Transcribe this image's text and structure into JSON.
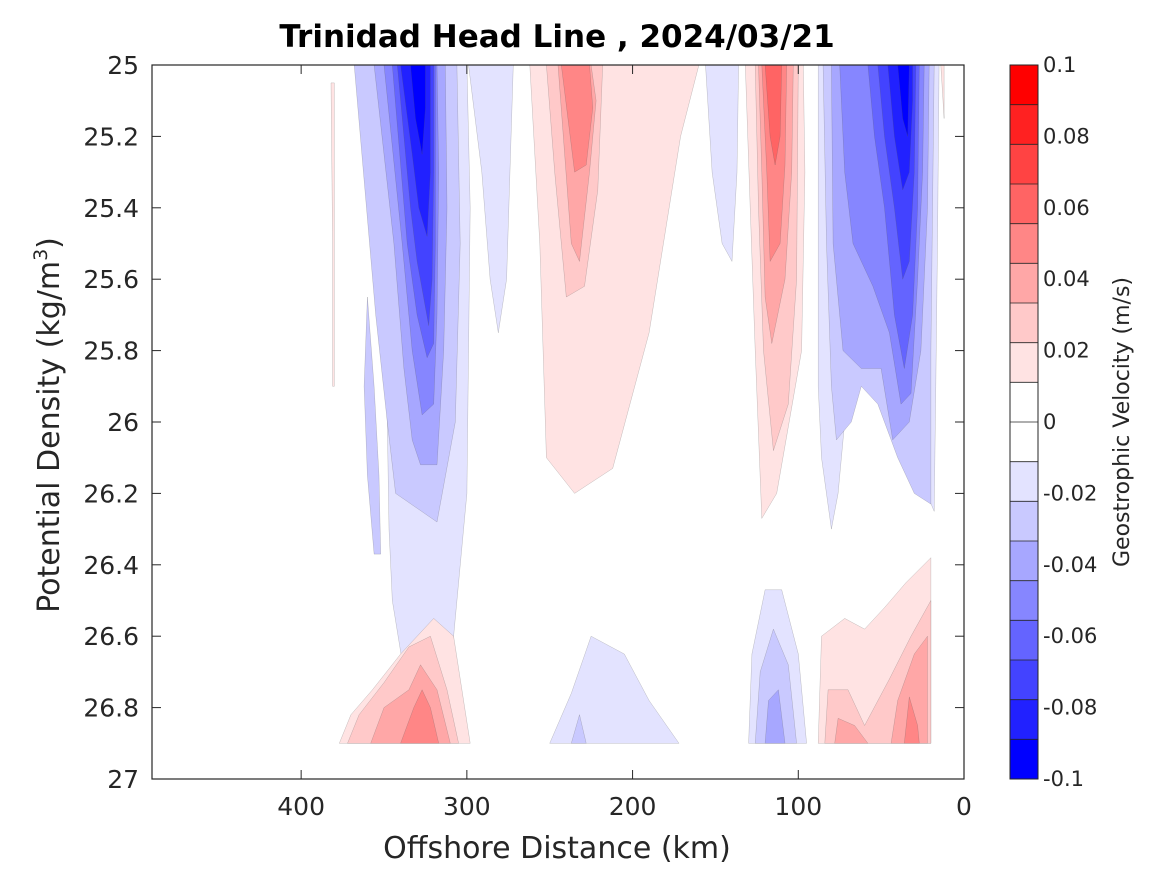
{
  "chart_data": {
    "type": "contour",
    "title": "Trinidad Head Line , 2024/03/21",
    "xlabel": "Offshore Distance (km)",
    "ylabel_main": "Potential Density (kg/m",
    "ylabel_sup": "3",
    "ylabel_close": ")",
    "xlim": [
      490,
      0
    ],
    "ylim": [
      25,
      27
    ],
    "x_reversed": true,
    "y_reversed": true,
    "xticks": [
      400,
      300,
      200,
      100,
      0
    ],
    "xtick_labels": [
      "400",
      "300",
      "200",
      "100",
      "0"
    ],
    "yticks": [
      25,
      25.2,
      25.4,
      25.6,
      25.8,
      26,
      26.2,
      26.4,
      26.6,
      26.8,
      27
    ],
    "ytick_labels": [
      "25",
      "25.2",
      "25.4",
      "25.6",
      "25.8",
      "26",
      "26.2",
      "26.4",
      "26.6",
      "26.8",
      "27"
    ],
    "grid": false,
    "colorbar": {
      "label": "Geostrophic Velocity (m/s)",
      "limits": [
        -0.1,
        0.1
      ],
      "ticks": [
        0.1,
        0.08,
        0.06,
        0.04,
        0.02,
        0,
        -0.02,
        -0.04,
        -0.06,
        -0.08,
        -0.1
      ],
      "tick_labels": [
        "0.1",
        "0.08",
        "0.06",
        "0.04",
        "0.02",
        "0",
        "-0.02",
        "-0.04",
        "-0.06",
        "-0.08",
        "-0.1"
      ],
      "level_colors": [
        "#ff0000",
        "#ff2121",
        "#ff4343",
        "#ff6464",
        "#ff8686",
        "#ffa7a7",
        "#ffc9c9",
        "#ffe3e3",
        "#ffffff",
        "#ffffff",
        "#e3e3ff",
        "#c9c9ff",
        "#a7a7ff",
        "#8686ff",
        "#6464ff",
        "#4343ff",
        "#2121ff",
        "#0000ff"
      ]
    },
    "features": [
      {
        "name": "blue core near 330 km",
        "x_km": [
          382,
          300
        ],
        "density": [
          25.0,
          26.7
        ],
        "peak_velocity": -0.1,
        "peak_x_km": 328,
        "peak_density": 25.4
      },
      {
        "name": "weak blue band near 285 km",
        "x_km": [
          300,
          270
        ],
        "density": [
          25.0,
          25.8
        ],
        "peak_velocity": -0.015
      },
      {
        "name": "red band near 230 km",
        "x_km": [
          262,
          160
        ],
        "density": [
          25.0,
          26.15
        ],
        "peak_velocity": 0.04,
        "peak_x_km": 235,
        "peak_density": 25.2
      },
      {
        "name": "weak blue band near 150 km",
        "x_km": [
          156,
          136
        ],
        "density": [
          25.0,
          25.55
        ],
        "peak_velocity": -0.015
      },
      {
        "name": "red core near 115 km",
        "x_km": [
          132,
          96
        ],
        "density": [
          25.0,
          26.27
        ],
        "peak_velocity": 0.06,
        "peak_x_km": 115,
        "peak_density": 25.2
      },
      {
        "name": "blue core near 30 km",
        "x_km": [
          88,
          17
        ],
        "density": [
          25.0,
          26.3
        ],
        "peak_velocity": -0.09,
        "peak_x_km": 30,
        "peak_density": 25.25
      },
      {
        "name": "deep red near 330 km",
        "x_km": [
          372,
          300
        ],
        "density": [
          26.5,
          26.9
        ],
        "peak_velocity": 0.045
      },
      {
        "name": "deep blue near 220 km",
        "x_km": [
          250,
          170
        ],
        "density": [
          26.6,
          26.9
        ],
        "peak_velocity": -0.015
      },
      {
        "name": "deep blue near 115 km",
        "x_km": [
          130,
          95
        ],
        "density": [
          26.5,
          26.9
        ],
        "peak_velocity": -0.035
      },
      {
        "name": "deep red near 50 km",
        "x_km": [
          88,
          20
        ],
        "density": [
          26.4,
          26.9
        ],
        "peak_velocity": 0.035
      }
    ]
  }
}
